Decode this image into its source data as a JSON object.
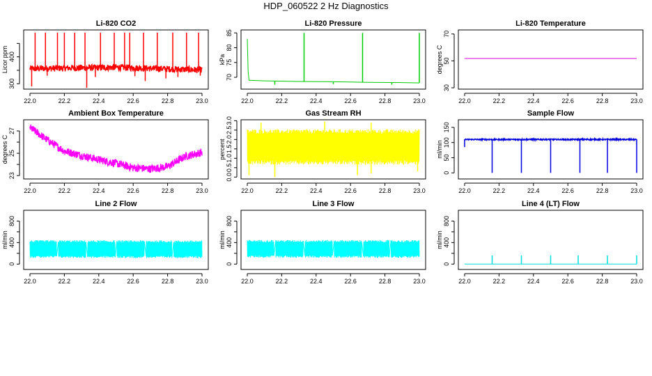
{
  "page": {
    "title": "HDP_060522  2 Hz Diagnostics"
  },
  "chart_data": [
    {
      "type": "line",
      "title": "Li-820 CO2",
      "ylabel": "Licor ppm",
      "color": "#ff0000",
      "xlim": [
        22.0,
        23.0
      ],
      "ylim": [
        280,
        500
      ],
      "xticks": [
        22.0,
        22.2,
        22.4,
        22.6,
        22.8,
        23.0
      ],
      "xtick_labels": [
        "22.0",
        "22.2",
        "22.4",
        "22.6",
        "22.8",
        "23.0"
      ],
      "yticks": [
        300,
        350,
        400,
        450
      ],
      "ytick_labels": [
        "300",
        "",
        "400",
        ""
      ],
      "series": [
        {
          "style": "noisy",
          "baseline": [
            [
              22.0,
              356
            ],
            [
              22.5,
              361
            ],
            [
              23.0,
              351
            ]
          ],
          "noise": 12,
          "spikes": [
            [
              22.03,
              490
            ],
            [
              22.09,
              490
            ],
            [
              22.16,
              490
            ],
            [
              22.2,
              490
            ],
            [
              22.26,
              490
            ],
            [
              22.32,
              490
            ],
            [
              22.41,
              490
            ],
            [
              22.49,
              490
            ],
            [
              22.55,
              490
            ],
            [
              22.58,
              490
            ],
            [
              22.66,
              490
            ],
            [
              22.74,
              490
            ],
            [
              22.83,
              490
            ],
            [
              22.91,
              490
            ],
            [
              22.98,
              490
            ]
          ],
          "dips": [
            [
              22.01,
              290
            ],
            [
              22.1,
              330
            ],
            [
              22.33,
              285
            ],
            [
              22.38,
              325
            ],
            [
              22.61,
              328
            ],
            [
              22.67,
              310
            ],
            [
              22.79,
              320
            ],
            [
              22.86,
              325
            ],
            [
              22.99,
              330
            ]
          ]
        }
      ]
    },
    {
      "type": "line",
      "title": "Li-820 Pressure",
      "ylabel": "kPa",
      "color": "#00cc00",
      "xlim": [
        22.0,
        23.0
      ],
      "ylim": [
        66,
        86
      ],
      "xticks": [
        22.0,
        22.2,
        22.4,
        22.6,
        22.8,
        23.0
      ],
      "xtick_labels": [
        "22.0",
        "22.2",
        "22.4",
        "22.6",
        "22.8",
        "23.0"
      ],
      "yticks": [
        70,
        75,
        80,
        85
      ],
      "ytick_labels": [
        "70",
        "75",
        "80",
        "85"
      ],
      "series": [
        {
          "style": "smooth",
          "points": [
            [
              22.0,
              83
            ],
            [
              22.005,
              72
            ],
            [
              22.01,
              69
            ],
            [
              22.1,
              68.8
            ],
            [
              22.3,
              68.6
            ],
            [
              22.5,
              68.5
            ],
            [
              22.7,
              68.3
            ],
            [
              22.9,
              68.2
            ],
            [
              23.0,
              68.1
            ]
          ],
          "spikes": [
            [
              22.33,
              85
            ],
            [
              22.67,
              85
            ],
            [
              23.0,
              85
            ]
          ],
          "dips": [
            [
              22.16,
              67.5
            ],
            [
              22.5,
              67.7
            ],
            [
              22.84,
              67.5
            ]
          ]
        }
      ]
    },
    {
      "type": "line",
      "title": "Li-820 Temperature",
      "ylabel": "degrees C",
      "color": "#dd00dd",
      "xlim": [
        22.0,
        23.0
      ],
      "ylim": [
        29,
        73
      ],
      "xticks": [
        22.0,
        22.2,
        22.4,
        22.6,
        22.8,
        23.0
      ],
      "xtick_labels": [
        "22.0",
        "22.2",
        "22.4",
        "22.6",
        "22.8",
        "23.0"
      ],
      "yticks": [
        30,
        50,
        70
      ],
      "ytick_labels": [
        "30",
        "50",
        "70"
      ],
      "series": [
        {
          "style": "smooth",
          "points": [
            [
              22.0,
              51.8
            ],
            [
              23.0,
              51.8
            ]
          ]
        }
      ]
    },
    {
      "type": "line",
      "title": "Ambient Box Temperature",
      "ylabel": "degrees C",
      "color": "#ff00ff",
      "xlim": [
        22.0,
        23.0
      ],
      "ylim": [
        22.7,
        28.0
      ],
      "xticks": [
        22.0,
        22.2,
        22.4,
        22.6,
        22.8,
        23.0
      ],
      "xtick_labels": [
        "22.0",
        "22.2",
        "22.4",
        "22.6",
        "22.8",
        "23.0"
      ],
      "yticks": [
        23,
        24,
        25,
        26,
        27
      ],
      "ytick_labels": [
        "23",
        "",
        "25",
        "",
        "27"
      ],
      "series": [
        {
          "style": "noisy",
          "baseline": [
            [
              22.0,
              27.3
            ],
            [
              22.1,
              26.2
            ],
            [
              22.2,
              25.2
            ],
            [
              22.35,
              24.6
            ],
            [
              22.5,
              24.1
            ],
            [
              22.6,
              23.7
            ],
            [
              22.7,
              23.6
            ],
            [
              22.8,
              23.8
            ],
            [
              22.9,
              24.7
            ],
            [
              23.0,
              25.1
            ]
          ],
          "noise": 0.35
        }
      ]
    },
    {
      "type": "line",
      "title": "Gas Stream RH",
      "ylabel": "percent",
      "color": "#ffff00",
      "xlim": [
        22.0,
        23.0
      ],
      "ylim": [
        -0.1,
        3.05
      ],
      "xticks": [
        22.0,
        22.2,
        22.4,
        22.6,
        22.8,
        23.0
      ],
      "xtick_labels": [
        "22.0",
        "22.2",
        "22.4",
        "22.6",
        "22.8",
        "23.0"
      ],
      "yticks": [
        0.0,
        0.5,
        1.0,
        1.5,
        2.0,
        2.5,
        3.0
      ],
      "ytick_labels": [
        "0.0",
        "0.5",
        "1.0",
        "1.5",
        "2.0",
        "2.5",
        "3.0"
      ],
      "series": [
        {
          "style": "band",
          "baseline": [
            [
              22.0,
              1.6
            ],
            [
              23.0,
              1.6
            ]
          ],
          "noise": 0.95,
          "spikes": [
            [
              22.08,
              2.9
            ],
            [
              22.45,
              2.95
            ],
            [
              22.72,
              2.9
            ]
          ],
          "dips": [
            [
              22.01,
              0.1
            ],
            [
              22.16,
              0.0
            ],
            [
              22.64,
              0.1
            ],
            [
              22.72,
              0.2
            ],
            [
              22.99,
              0.3
            ]
          ]
        }
      ]
    },
    {
      "type": "line",
      "title": "Sample Flow",
      "ylabel": "ml/min",
      "color": "#0000dd",
      "xlim": [
        22.0,
        23.0
      ],
      "ylim": [
        -20,
        175
      ],
      "xticks": [
        22.0,
        22.2,
        22.4,
        22.6,
        22.8,
        23.0
      ],
      "xtick_labels": [
        "22.0",
        "22.2",
        "22.4",
        "22.6",
        "22.8",
        "23.0"
      ],
      "yticks": [
        0,
        50,
        100,
        150
      ],
      "ytick_labels": [
        "0",
        "50",
        "100",
        "150"
      ],
      "series": [
        {
          "style": "noisy",
          "baseline": [
            [
              22.0,
              110
            ],
            [
              23.0,
              110
            ]
          ],
          "noise": 2,
          "dips": [
            [
              22.0,
              85
            ],
            [
              22.16,
              0
            ],
            [
              22.33,
              0
            ],
            [
              22.5,
              0
            ],
            [
              22.67,
              0
            ],
            [
              22.83,
              0
            ],
            [
              23.0,
              0
            ]
          ]
        }
      ]
    },
    {
      "type": "line",
      "title": "Line 2 Flow",
      "ylabel": "ml/min",
      "color": "#00ffff",
      "xlim": [
        22.0,
        23.0
      ],
      "ylim": [
        -100,
        1000
      ],
      "xticks": [
        22.0,
        22.2,
        22.4,
        22.6,
        22.8,
        23.0
      ],
      "xtick_labels": [
        "22.0",
        "22.2",
        "22.4",
        "22.6",
        "22.8",
        "23.0"
      ],
      "yticks": [
        0,
        200,
        400,
        600,
        800
      ],
      "ytick_labels": [
        "0",
        "",
        "400",
        "",
        "800"
      ],
      "series": [
        {
          "style": "band",
          "baseline": [
            [
              22.0,
              280
            ],
            [
              23.0,
              275
            ]
          ],
          "noise": 165,
          "gaps": [
            22.16,
            22.33,
            22.5,
            22.67,
            22.83
          ]
        }
      ]
    },
    {
      "type": "line",
      "title": "Line 3 Flow",
      "ylabel": "ml/min",
      "color": "#00ffff",
      "xlim": [
        22.0,
        23.0
      ],
      "ylim": [
        -100,
        1000
      ],
      "xticks": [
        22.0,
        22.2,
        22.4,
        22.6,
        22.8,
        23.0
      ],
      "xtick_labels": [
        "22.0",
        "22.2",
        "22.4",
        "22.6",
        "22.8",
        "23.0"
      ],
      "yticks": [
        0,
        200,
        400,
        600,
        800
      ],
      "ytick_labels": [
        "0",
        "",
        "400",
        "",
        "800"
      ],
      "series": [
        {
          "style": "band",
          "baseline": [
            [
              22.0,
              285
            ],
            [
              23.0,
              280
            ]
          ],
          "noise": 165,
          "gaps": [
            22.16,
            22.33,
            22.5,
            22.67,
            22.83
          ]
        }
      ]
    },
    {
      "type": "line",
      "title": "Line 4 (LT) Flow",
      "ylabel": "ml/min",
      "color": "#00dddd",
      "xlim": [
        22.0,
        23.0
      ],
      "ylim": [
        -100,
        1000
      ],
      "xticks": [
        22.0,
        22.2,
        22.4,
        22.6,
        22.8,
        23.0
      ],
      "xtick_labels": [
        "22.0",
        "22.2",
        "22.4",
        "22.6",
        "22.8",
        "23.0"
      ],
      "yticks": [
        0,
        200,
        400,
        600,
        800
      ],
      "ytick_labels": [
        "0",
        "",
        "400",
        "",
        "800"
      ],
      "series": [
        {
          "style": "smooth",
          "points": [
            [
              22.0,
              0
            ],
            [
              23.0,
              0
            ]
          ],
          "spikes": [
            [
              22.16,
              160
            ],
            [
              22.33,
              160
            ],
            [
              22.5,
              160
            ],
            [
              22.66,
              160
            ],
            [
              22.83,
              160
            ],
            [
              23.0,
              160
            ]
          ]
        }
      ]
    }
  ]
}
